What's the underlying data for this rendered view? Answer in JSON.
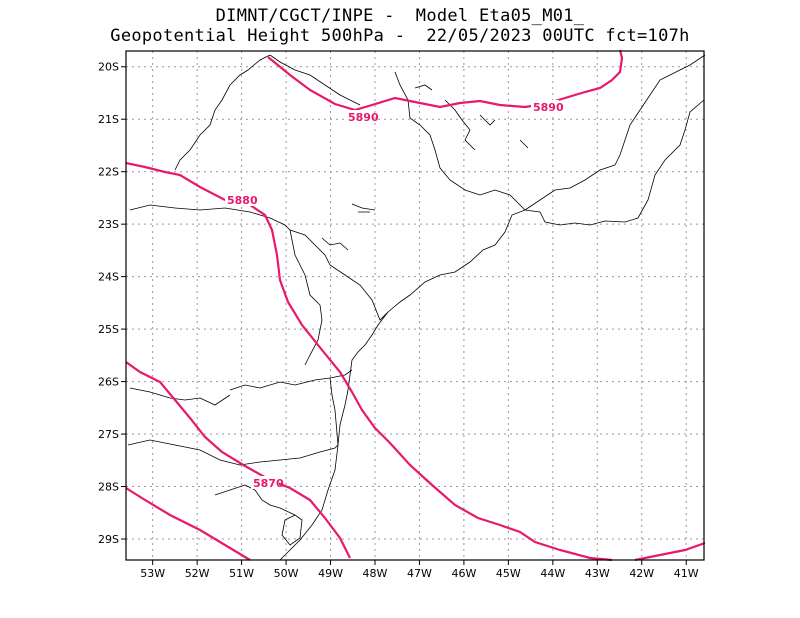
{
  "title": {
    "line1": "DIMNT/CGCT/INPE -  Model Eta05_M01_",
    "line2": "Geopotential Height 500hPa -  22/05/2023 00UTC fct=107h"
  },
  "map": {
    "lon_range": [
      -53.6,
      -40.6
    ],
    "lat_range": [
      -29.4,
      -19.7
    ],
    "lon_ticks": [
      "53W",
      "52W",
      "51W",
      "50W",
      "49W",
      "48W",
      "47W",
      "46W",
      "45W",
      "44W",
      "43W",
      "42W",
      "41W"
    ],
    "lat_ticks": [
      "20S",
      "21S",
      "22S",
      "23S",
      "24S",
      "25S",
      "26S",
      "27S",
      "28S",
      "29S"
    ],
    "grid": "dotted",
    "contour_color": "#e8196c",
    "contour_labels": [
      "5890",
      "5890",
      "5880",
      "5870"
    ]
  }
}
